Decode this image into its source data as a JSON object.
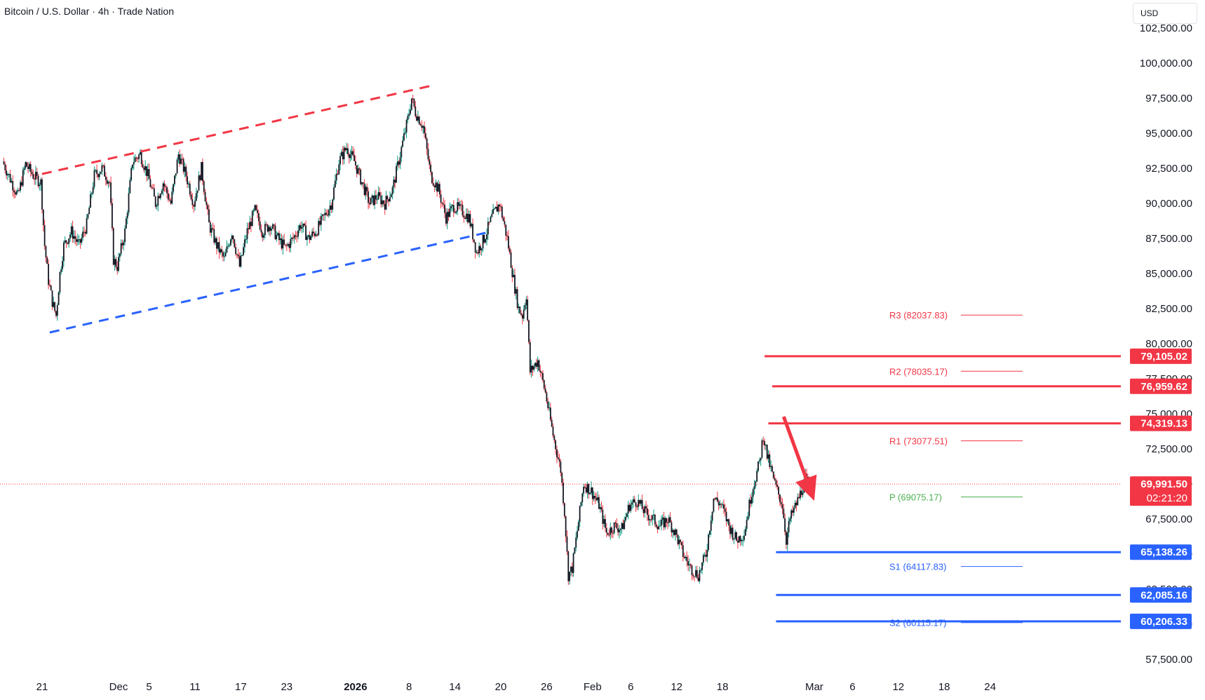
{
  "header": {
    "title": "Bitcoin / U.S. Dollar · 4h · Trade Nation",
    "currency": "USD"
  },
  "colors": {
    "up": "#089981",
    "down": "#f23645",
    "candle_body": "#131722",
    "resistance": "#f23645",
    "support": "#2962ff",
    "pivot": "#4caf50",
    "channel_top": "#f23645",
    "channel_bottom": "#2962ff"
  },
  "chart_data": {
    "type": "candlestick",
    "symbol": "Bitcoin / U.S. Dollar",
    "interval": "4h",
    "ylim": [
      56500,
      102500
    ],
    "y_ticks": [
      "57,500.00",
      "60,000.00",
      "62,500.00",
      "65,000.00",
      "67,500.00",
      "70,000.00",
      "72,500.00",
      "75,000.00",
      "77,500.00",
      "80,000.00",
      "82,500.00",
      "85,000.00",
      "87,500.00",
      "90,000.00",
      "92,500.00",
      "95,000.00",
      "97,500.00",
      "100,000.00",
      "102,500.00"
    ],
    "x_ticks": [
      {
        "label": "21",
        "day": 0
      },
      {
        "label": "Dec",
        "day": 10
      },
      {
        "label": "5",
        "day": 14
      },
      {
        "label": "11",
        "day": 20
      },
      {
        "label": "17",
        "day": 26
      },
      {
        "label": "23",
        "day": 32
      },
      {
        "label": "2026",
        "day": 41
      },
      {
        "label": "8",
        "day": 48
      },
      {
        "label": "14",
        "day": 54
      },
      {
        "label": "20",
        "day": 60
      },
      {
        "label": "26",
        "day": 66
      },
      {
        "label": "Feb",
        "day": 72
      },
      {
        "label": "6",
        "day": 77
      },
      {
        "label": "12",
        "day": 83
      },
      {
        "label": "18",
        "day": 89
      },
      {
        "label": "Mar",
        "day": 101
      },
      {
        "label": "6",
        "day": 106
      },
      {
        "label": "12",
        "day": 112
      },
      {
        "label": "18",
        "day": 118
      },
      {
        "label": "24",
        "day": 124
      }
    ],
    "path_points": [
      [
        -5,
        93000
      ],
      [
        -3,
        90500
      ],
      [
        -2,
        92800
      ],
      [
        -1,
        92000
      ],
      [
        0,
        91500
      ],
      [
        0.5,
        87000
      ],
      [
        1,
        84500
      ],
      [
        1.5,
        83000
      ],
      [
        2,
        82000
      ],
      [
        2.5,
        85000
      ],
      [
        3,
        87000
      ],
      [
        4,
        88000
      ],
      [
        5,
        87000
      ],
      [
        6,
        88500
      ],
      [
        7,
        92000
      ],
      [
        8,
        92500
      ],
      [
        9,
        91500
      ],
      [
        9.5,
        86000
      ],
      [
        10,
        85500
      ],
      [
        11,
        88000
      ],
      [
        12,
        93000
      ],
      [
        13,
        93500
      ],
      [
        14,
        92000
      ],
      [
        15,
        90000
      ],
      [
        16,
        91500
      ],
      [
        17,
        90000
      ],
      [
        18,
        93500
      ],
      [
        19,
        92000
      ],
      [
        20,
        90000
      ],
      [
        21,
        92500
      ],
      [
        22,
        88500
      ],
      [
        23,
        87000
      ],
      [
        24,
        86000
      ],
      [
        25,
        88000
      ],
      [
        26,
        85500
      ],
      [
        27,
        88000
      ],
      [
        28,
        89500
      ],
      [
        29,
        88000
      ],
      [
        30,
        88500
      ],
      [
        31,
        87500
      ],
      [
        32,
        86800
      ],
      [
        33,
        87500
      ],
      [
        34,
        88500
      ],
      [
        35,
        87500
      ],
      [
        36,
        88000
      ],
      [
        37,
        89000
      ],
      [
        38,
        90000
      ],
      [
        39,
        93000
      ],
      [
        40,
        94000
      ],
      [
        41,
        93000
      ],
      [
        42,
        91500
      ],
      [
        43,
        90000
      ],
      [
        44,
        90500
      ],
      [
        45,
        90000
      ],
      [
        46,
        91000
      ],
      [
        47,
        93500
      ],
      [
        48,
        96000
      ],
      [
        48.5,
        97500
      ],
      [
        49,
        96500
      ],
      [
        50,
        95500
      ],
      [
        51,
        92000
      ],
      [
        52,
        91000
      ],
      [
        53,
        89000
      ],
      [
        54,
        89800
      ],
      [
        55,
        89500
      ],
      [
        56,
        89000
      ],
      [
        57,
        86500
      ],
      [
        58,
        87500
      ],
      [
        59,
        89000
      ],
      [
        60,
        90000
      ],
      [
        61,
        87500
      ],
      [
        62,
        84000
      ],
      [
        62.5,
        82500
      ],
      [
        63,
        82000
      ],
      [
        63.5,
        83500
      ],
      [
        64,
        78000
      ],
      [
        65,
        78800
      ],
      [
        66,
        76500
      ],
      [
        67,
        73500
      ],
      [
        68,
        71000
      ],
      [
        68.5,
        68000
      ],
      [
        69,
        63500
      ],
      [
        69.5,
        64000
      ],
      [
        70,
        66000
      ],
      [
        71,
        70000
      ],
      [
        72,
        69500
      ],
      [
        73,
        68500
      ],
      [
        74,
        66500
      ],
      [
        75,
        67000
      ],
      [
        76,
        66800
      ],
      [
        77,
        68500
      ],
      [
        78,
        68800
      ],
      [
        79,
        68000
      ],
      [
        80,
        67500
      ],
      [
        81,
        67000
      ],
      [
        82,
        67500
      ],
      [
        83,
        66500
      ],
      [
        84,
        65000
      ],
      [
        85,
        64000
      ],
      [
        86,
        63500
      ],
      [
        87,
        65000
      ],
      [
        88,
        69000
      ],
      [
        89,
        68500
      ],
      [
        90,
        67000
      ],
      [
        91,
        66000
      ],
      [
        92,
        66500
      ],
      [
        93,
        69500
      ],
      [
        94,
        71500
      ],
      [
        94.5,
        73500
      ],
      [
        95,
        72000
      ],
      [
        96,
        70000
      ],
      [
        97,
        68500
      ],
      [
        97.5,
        66000
      ],
      [
        98,
        67500
      ],
      [
        99,
        68800
      ],
      [
        100,
        70300
      ],
      [
        100.5,
        70000
      ]
    ],
    "channel": {
      "top": {
        "start": {
          "day": 0,
          "price": 92100
        },
        "end": {
          "day": 51,
          "price": 98400
        }
      },
      "bottom": {
        "start": {
          "day": 1,
          "price": 80800
        },
        "end": {
          "day": 58,
          "price": 87900
        }
      }
    },
    "resistance_levels": [
      79105.02,
      76959.62,
      74319.13
    ],
    "support_levels": [
      65138.26,
      62085.16,
      60206.33
    ],
    "pivots": [
      {
        "name": "R3",
        "value": 82037.83,
        "text": "R3 (82037.83)"
      },
      {
        "name": "R2",
        "value": 78035.17,
        "text": "R2 (78035.17)"
      },
      {
        "name": "R1",
        "value": 73077.51,
        "text": "R1 (73077.51)"
      },
      {
        "name": "P",
        "value": 69075.17,
        "text": "P (69075.17)"
      },
      {
        "name": "S1",
        "value": 64117.83,
        "text": "S1 (64117.83)"
      },
      {
        "name": "S2",
        "value": 60115.17,
        "text": "S2 (60115.17)"
      }
    ],
    "last_price": 69991.5,
    "last_price_label": "69,991.50",
    "countdown": "02:21:20",
    "level_labels": {
      "r1": "79,105.02",
      "r2": "76,959.62",
      "r3": "74,319.13",
      "s1": "65,138.26",
      "s2": "62,085.16",
      "s3": "60,206.33"
    },
    "arrow": {
      "from": {
        "day": 97,
        "price": 74800
      },
      "to": {
        "day": 101,
        "price": 68800
      },
      "direction": "down"
    }
  }
}
